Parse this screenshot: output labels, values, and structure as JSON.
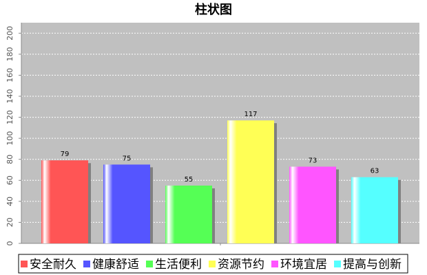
{
  "chart_data": {
    "type": "bar",
    "title": "柱状图",
    "series": [
      {
        "name": "安全耐久",
        "color": "#ff5555",
        "values": [
          79
        ]
      },
      {
        "name": "健康舒适",
        "color": "#5555ff",
        "values": [
          75
        ]
      },
      {
        "name": "生活便利",
        "color": "#55ff55",
        "values": [
          55
        ]
      },
      {
        "name": "资源节约",
        "color": "#ffff55",
        "values": [
          117
        ]
      },
      {
        "name": "环境宜居",
        "color": "#ff55ff",
        "values": [
          73
        ]
      },
      {
        "name": "提高与创新",
        "color": "#55ffff",
        "values": [
          63
        ]
      }
    ],
    "ylim": [
      0,
      210
    ],
    "yticks": [
      0,
      20,
      40,
      60,
      80,
      100,
      120,
      140,
      160,
      180,
      200
    ],
    "grid": true
  }
}
